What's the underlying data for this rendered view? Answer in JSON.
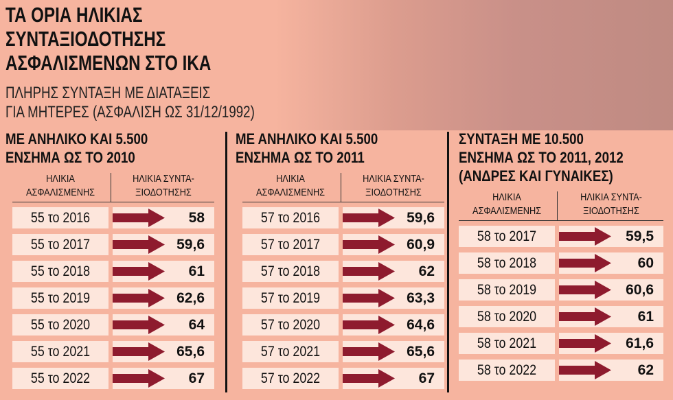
{
  "header": {
    "title": [
      "ΤΑ ΟΡΙΑ ΗΛΙΚΙΑΣ",
      "ΣΥΝΤΑΞΙΟΔΟΤΗΣΗΣ",
      "ΑΣΦΑΛΙΣΜΕΝΩΝ ΣΤΟ ΙΚΑ"
    ],
    "subtitle": [
      "ΠΛΗΡΗΣ ΣΥΝΤΑΞΗ ΜΕ ΔΙΑΤΑΞΕΙΣ",
      "ΓΙΑ ΜΗΤΕΡΕΣ (ΑΣΦΑΛΙΣΗ ΩΣ 31/12/1992)"
    ]
  },
  "panels": [
    {
      "title": [
        "ΜΕ ΑΝΗΛΙΚΟ ΚΑΙ 5.500",
        "ΕΝΣΗΜΑ ΩΣ ΤΟ 2010"
      ],
      "columns": [
        [
          "ΗΛΙΚΙΑ",
          "ΑΣΦΑΛΙΣΜΕΝΗΣ"
        ],
        [
          "ΗΛΙΚΙΑ ΣΥΝΤΑ-",
          "ΞΙΟΔΟΤΗΣΗΣ"
        ]
      ],
      "rows": [
        [
          "55 το 2016",
          "58"
        ],
        [
          "55 το 2017",
          "59,6"
        ],
        [
          "55 το 2018",
          "61"
        ],
        [
          "55 το 2019",
          "62,6"
        ],
        [
          "55 το 2020",
          "64"
        ],
        [
          "55 το 2021",
          "65,6"
        ],
        [
          "55 το 2022",
          "67"
        ]
      ]
    },
    {
      "title": [
        "ΜΕ ΑΝΗΛΙΚΟ ΚΑΙ 5.500",
        "ΕΝΣΗΜΑ ΩΣ ΤΟ 2011"
      ],
      "columns": [
        [
          "ΗΛΙΚΙΑ",
          "ΑΣΦΑΛΙΣΜΕΝΗΣ"
        ],
        [
          "ΗΛΙΚΙΑ ΣΥΝΤΑ-",
          "ΞΙΟΔΟΤΗΣΗΣ"
        ]
      ],
      "rows": [
        [
          "57 το 2016",
          "59,6"
        ],
        [
          "57 το 2017",
          "60,9"
        ],
        [
          "57 το 2018",
          "62"
        ],
        [
          "57 το 2019",
          "63,3"
        ],
        [
          "57 το 2020",
          "64,6"
        ],
        [
          "57 το 2021",
          "65,6"
        ],
        [
          "57 το 2022",
          "67"
        ]
      ]
    },
    {
      "title": [
        "ΣΥΝΤΑΞΗ ΜΕ 10.500",
        "ΕΝΣΗΜΑ ΩΣ ΤΟ 2011, 2012",
        "(ΑΝΔΡΕΣ ΚΑΙ ΓΥΝΑΙΚΕΣ)"
      ],
      "columns": [
        [
          "ΗΛΙΚΙΑ",
          "ΑΣΦΑΛΙΣΜΕΝΗΣ"
        ],
        [
          "ΗΛΙΚΙΑ ΣΥΝΤΑ-",
          "ΞΙΟΔΟΤΗΣΗΣ"
        ]
      ],
      "rows": [
        [
          "58 το 2017",
          "59,5"
        ],
        [
          "58 το 2018",
          "60"
        ],
        [
          "58 το 2019",
          "60,6"
        ],
        [
          "58 το 2020",
          "61"
        ],
        [
          "58 το 2021",
          "61,6"
        ],
        [
          "58 το 2022",
          "62"
        ]
      ]
    }
  ]
}
